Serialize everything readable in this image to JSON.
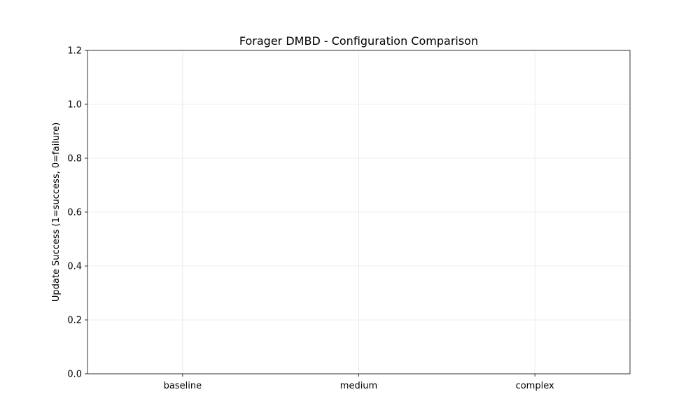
{
  "chart_data": {
    "type": "bar",
    "title": "Forager DMBD - Configuration Comparison",
    "xlabel": "",
    "ylabel": "Update Success (1=success, 0=failure)",
    "categories": [
      "baseline",
      "medium",
      "complex"
    ],
    "values": [
      null,
      null,
      null
    ],
    "ylim": [
      0,
      1.2
    ],
    "yticks": [
      "0.0",
      "0.2",
      "0.4",
      "0.6",
      "0.8",
      "1.0",
      "1.2"
    ],
    "grid": true,
    "legend": "none"
  }
}
